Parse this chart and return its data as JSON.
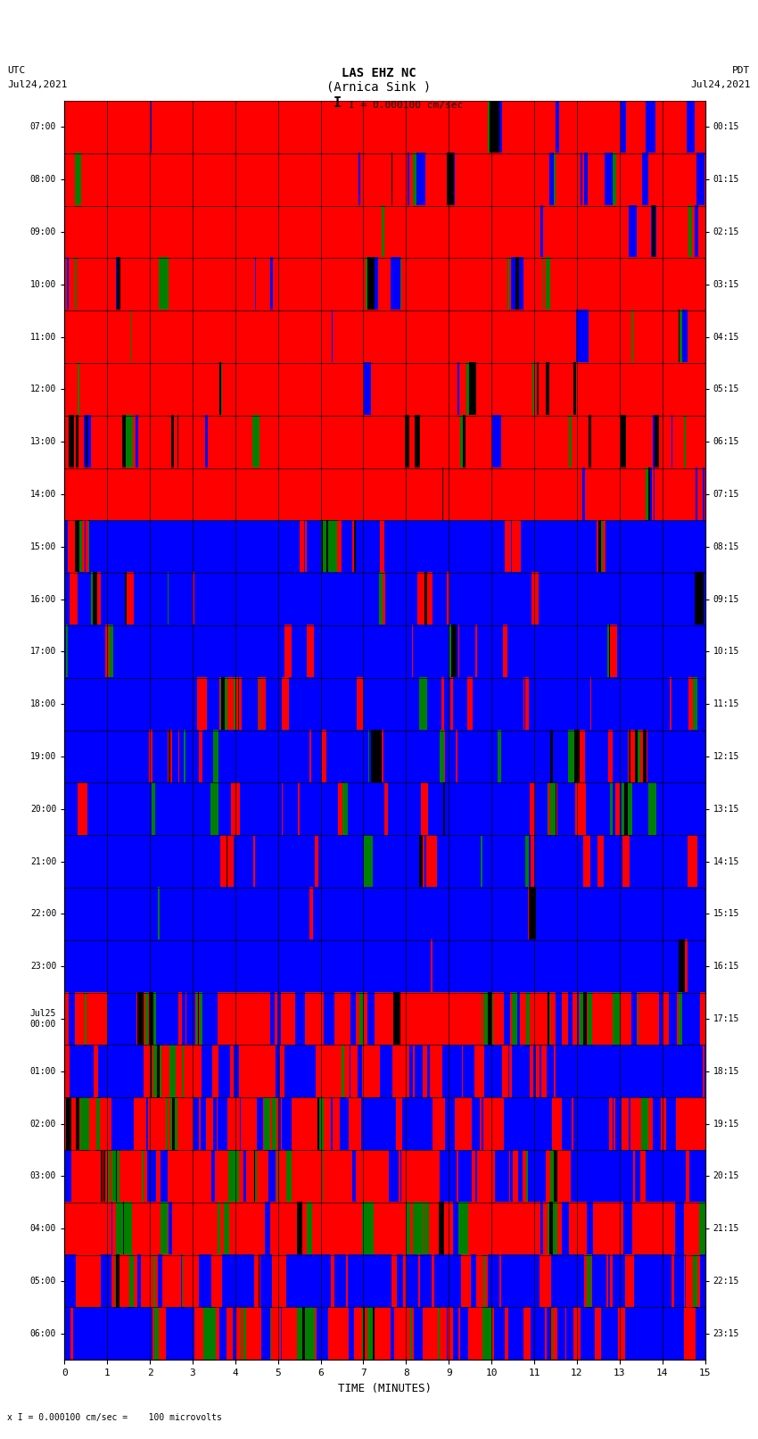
{
  "title_line1": "LAS EHZ NC",
  "title_line2": "(Arnica Sink )",
  "scale_label": "I = 0.000100 cm/sec",
  "left_label_top": "UTC",
  "left_label_date": "Jul24,2021",
  "right_label_top": "PDT",
  "right_label_date": "Jul24,2021",
  "bottom_label": "TIME (MINUTES)",
  "bottom_note": "x I = 0.000100 cm/sec =    100 microvolts",
  "utc_times": [
    "07:00",
    "08:00",
    "09:00",
    "10:00",
    "11:00",
    "12:00",
    "13:00",
    "14:00",
    "15:00",
    "16:00",
    "17:00",
    "18:00",
    "19:00",
    "20:00",
    "21:00",
    "22:00",
    "23:00",
    "Jul25\n00:00",
    "01:00",
    "02:00",
    "03:00",
    "04:00",
    "05:00",
    "06:00"
  ],
  "pdt_times": [
    "00:15",
    "01:15",
    "02:15",
    "03:15",
    "04:15",
    "05:15",
    "06:15",
    "07:15",
    "08:15",
    "09:15",
    "10:15",
    "11:15",
    "12:15",
    "13:15",
    "14:15",
    "15:15",
    "16:15",
    "17:15",
    "18:15",
    "19:15",
    "20:15",
    "21:15",
    "22:15",
    "23:15"
  ],
  "n_rows": 24,
  "n_cols": 750,
  "total_minutes": 15,
  "bg_color": "#ffffff",
  "fig_width": 8.5,
  "fig_height": 16.13,
  "dpi": 100
}
